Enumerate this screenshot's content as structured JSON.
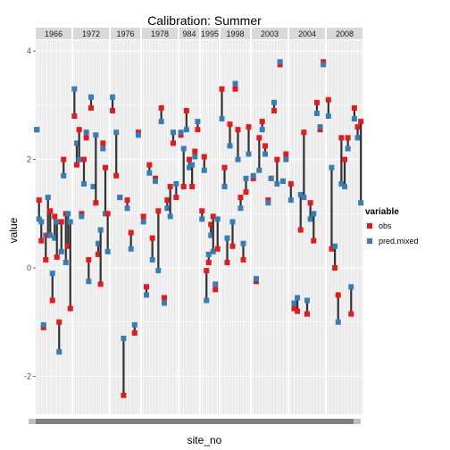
{
  "chart_data": {
    "type": "scatter",
    "title": "Calibration: Summer",
    "xlabel": "site_no",
    "ylabel": "value",
    "ylim": [
      -2.7,
      4.2
    ],
    "yticks": [
      -2,
      0,
      2,
      4
    ],
    "facets": [
      "1966",
      "1972",
      "1976",
      "1978",
      "984",
      "1995",
      "1998",
      "2003",
      "2004",
      "2008"
    ],
    "legend": {
      "title": "variable",
      "placement": "right",
      "entries": [
        {
          "label": "obs",
          "color": "#e41a1c"
        },
        {
          "label": "pred.mixed",
          "color": "#377eb8"
        }
      ]
    },
    "series": [
      {
        "name": "obs",
        "color": "#e41a1c"
      },
      {
        "name": "pred.mixed",
        "color": "#377eb8"
      }
    ],
    "grid": true,
    "panels": [
      {
        "facet": "1966",
        "obs": [
          2.55,
          1.25,
          0.5,
          -1.1,
          0.15,
          0.6,
          1.05,
          -0.6,
          0.95,
          0.2,
          -1.0,
          0.85,
          2.0,
          1.0,
          0.4,
          -0.75
        ],
        "pred": [
          2.55,
          0.9,
          0.85,
          -1.05,
          0.6,
          1.3,
          0.6,
          -0.1,
          0.55,
          0.85,
          -1.55,
          0.3,
          1.7,
          0.1,
          1.0,
          0.85
        ]
      },
      {
        "facet": "1972",
        "obs": [
          2.8,
          1.9,
          2.55,
          1.0,
          2.0,
          2.4,
          0.15,
          2.95,
          1.5,
          1.2,
          0.25,
          -0.3,
          2.3,
          1.85,
          1.0
        ],
        "pred": [
          3.3,
          2.3,
          2.0,
          0.95,
          1.55,
          2.5,
          -0.25,
          3.15,
          1.5,
          2.45,
          0.45,
          0.7,
          2.2,
          1.0,
          0.3
        ]
      },
      {
        "facet": "1976",
        "obs": [
          2.9,
          1.7,
          1.3,
          -2.35,
          1.25,
          0.65,
          -1.2,
          2.5
        ],
        "pred": [
          3.15,
          2.5,
          1.3,
          -1.3,
          1.1,
          0.35,
          -1.05,
          2.45
        ]
      },
      {
        "facet": "1978",
        "obs": [
          0.95,
          -0.35,
          1.9,
          0.55,
          1.65,
          1.05,
          2.95,
          -0.55,
          1.25,
          1.5,
          2.3,
          1.3
        ],
        "pred": [
          0.85,
          -0.5,
          1.75,
          0.15,
          1.6,
          -0.05,
          2.7,
          -0.65,
          1.1,
          0.95,
          2.5,
          1.55
        ]
      },
      {
        "facet": "984",
        "obs": [
          2.45,
          1.5,
          2.9,
          2.0,
          1.5,
          2.15,
          2.55
        ],
        "pred": [
          2.5,
          2.2,
          2.55,
          1.85,
          1.9,
          2.05,
          2.7
        ]
      },
      {
        "facet": "1995",
        "obs": [
          1.05,
          2.05,
          -0.05,
          0.1,
          0.8,
          0.95,
          -0.4,
          0.35
        ],
        "pred": [
          0.9,
          1.8,
          -0.6,
          0.25,
          0.6,
          0.3,
          -0.3,
          0.9
        ]
      },
      {
        "facet": "1998",
        "obs": [
          3.3,
          1.85,
          0.1,
          2.65,
          0.4,
          3.3,
          2.55,
          1.3,
          0.15,
          1.4,
          2.6
        ],
        "pred": [
          2.75,
          1.5,
          0.55,
          2.25,
          0.85,
          3.4,
          2.0,
          1.1,
          0.45,
          1.65,
          2.1
        ]
      },
      {
        "facet": "2003",
        "obs": [
          1.65,
          -0.25,
          2.4,
          2.7,
          2.25,
          1.25,
          1.65,
          2.9,
          2.0,
          3.75,
          1.6,
          2.1
        ],
        "pred": [
          1.7,
          -0.2,
          1.8,
          2.55,
          2.1,
          1.2,
          1.65,
          3.05,
          1.55,
          3.8,
          1.6,
          2.0
        ]
      },
      {
        "facet": "2004",
        "obs": [
          1.55,
          -0.75,
          -0.8,
          0.7,
          2.5,
          -0.85,
          1.2,
          0.5,
          3.05,
          2.55,
          3.8
        ],
        "pred": [
          1.25,
          -0.65,
          -0.55,
          1.35,
          1.3,
          -0.6,
          0.9,
          1.0,
          2.85,
          2.6,
          3.75
        ]
      },
      {
        "facet": "2008",
        "obs": [
          3.1,
          0.35,
          0.0,
          -0.5,
          2.4,
          2.0,
          2.4,
          -0.85,
          2.95,
          2.6,
          2.7
        ],
        "pred": [
          2.8,
          1.85,
          0.4,
          -1.0,
          1.55,
          1.5,
          2.2,
          -0.35,
          2.75,
          2.4,
          1.2
        ]
      }
    ]
  }
}
